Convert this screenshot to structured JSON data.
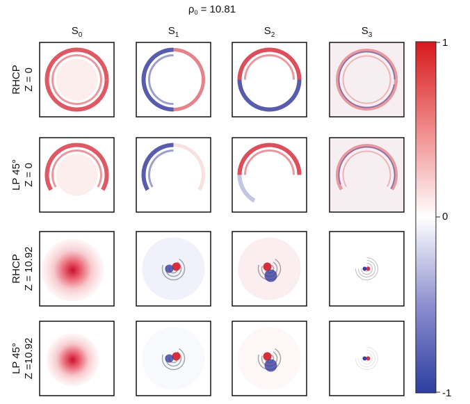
{
  "figure": {
    "title": {
      "symbol": "ρ",
      "subscript": "0",
      "rest": " = 10.81"
    },
    "columns": [
      {
        "base": "S",
        "sub": "0"
      },
      {
        "base": "S",
        "sub": "1"
      },
      {
        "base": "S",
        "sub": "2"
      },
      {
        "base": "S",
        "sub": "3"
      }
    ],
    "rows": [
      {
        "line1": "RHCP",
        "line2": "Z = 0"
      },
      {
        "line1": "LP 45°",
        "line2": "Z = 0"
      },
      {
        "line1": "RHCP",
        "line2": "Z = 10.92"
      },
      {
        "line1": "LP 45°",
        "line2": "Z =10.92"
      }
    ],
    "colorbar": {
      "top": "1",
      "middle": "0",
      "bottom": "-1"
    }
  }
}
